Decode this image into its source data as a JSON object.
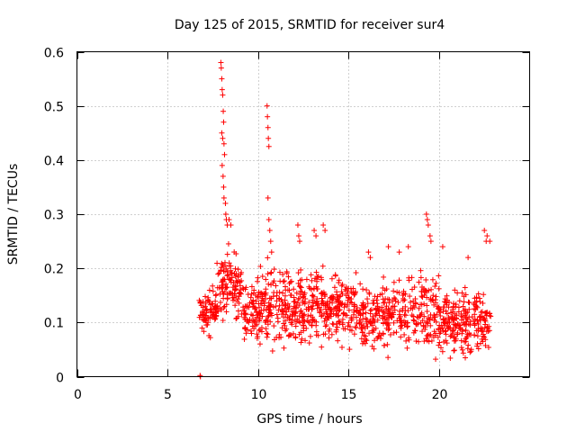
{
  "chart_data": {
    "type": "scatter",
    "title": "Day 125 of 2015, SRMTID for receiver sur4",
    "xlabel": "GPS time / hours",
    "ylabel": "SRMTID / TECUs",
    "xlim": [
      0,
      25
    ],
    "ylim": [
      0,
      0.6
    ],
    "x_ticks": [
      "0",
      "5",
      "10",
      "15",
      "20"
    ],
    "y_ticks": [
      "0",
      "0.1",
      "0.2",
      "0.3",
      "0.4",
      "0.5",
      "0.6"
    ],
    "grid": true,
    "marker": "+",
    "color": "#ff0000",
    "series": [
      {
        "name": "sur4",
        "points": [
          [
            6.8,
            0.002
          ],
          [
            6.82,
            0.0
          ],
          [
            7.95,
            0.58
          ],
          [
            7.97,
            0.57
          ],
          [
            8.0,
            0.55
          ],
          [
            8.02,
            0.53
          ],
          [
            8.05,
            0.52
          ],
          [
            8.08,
            0.49
          ],
          [
            8.1,
            0.47
          ],
          [
            8.0,
            0.45
          ],
          [
            8.05,
            0.44
          ],
          [
            8.12,
            0.43
          ],
          [
            8.15,
            0.41
          ],
          [
            8.02,
            0.39
          ],
          [
            8.07,
            0.37
          ],
          [
            8.1,
            0.35
          ],
          [
            8.12,
            0.33
          ],
          [
            8.2,
            0.32
          ],
          [
            8.22,
            0.3
          ],
          [
            8.25,
            0.29
          ],
          [
            8.3,
            0.28
          ],
          [
            8.4,
            0.29
          ],
          [
            8.5,
            0.28
          ],
          [
            10.5,
            0.5
          ],
          [
            10.52,
            0.48
          ],
          [
            10.55,
            0.46
          ],
          [
            10.57,
            0.44
          ],
          [
            10.6,
            0.425
          ],
          [
            10.55,
            0.33
          ],
          [
            10.6,
            0.29
          ],
          [
            10.65,
            0.27
          ],
          [
            10.7,
            0.25
          ],
          [
            10.75,
            0.23
          ],
          [
            12.2,
            0.28
          ],
          [
            12.25,
            0.26
          ],
          [
            12.3,
            0.25
          ],
          [
            13.1,
            0.27
          ],
          [
            13.2,
            0.26
          ],
          [
            13.6,
            0.28
          ],
          [
            13.7,
            0.27
          ],
          [
            16.1,
            0.23
          ],
          [
            16.2,
            0.22
          ],
          [
            17.2,
            0.24
          ],
          [
            17.8,
            0.23
          ],
          [
            18.3,
            0.24
          ],
          [
            19.3,
            0.3
          ],
          [
            19.35,
            0.29
          ],
          [
            19.4,
            0.28
          ],
          [
            19.5,
            0.26
          ],
          [
            19.55,
            0.25
          ],
          [
            20.2,
            0.24
          ],
          [
            21.6,
            0.22
          ],
          [
            22.5,
            0.27
          ],
          [
            22.6,
            0.25
          ],
          [
            22.65,
            0.26
          ],
          [
            22.8,
            0.25
          ]
        ]
      }
    ]
  }
}
